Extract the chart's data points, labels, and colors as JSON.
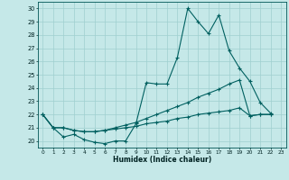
{
  "xlabel": "Humidex (Indice chaleur)",
  "background_color": "#c5e8e8",
  "grid_color": "#9fcfcf",
  "line_color": "#006060",
  "xlim": [
    -0.5,
    23.5
  ],
  "ylim": [
    19.5,
    30.5
  ],
  "xticks": [
    0,
    1,
    2,
    3,
    4,
    5,
    6,
    7,
    8,
    9,
    10,
    11,
    12,
    13,
    14,
    15,
    16,
    17,
    18,
    19,
    20,
    21,
    22,
    23
  ],
  "yticks": [
    20,
    21,
    22,
    23,
    24,
    25,
    26,
    27,
    28,
    29,
    30
  ],
  "s0": [
    22.0,
    21.0,
    20.3,
    20.5,
    20.1,
    19.9,
    19.8,
    20.0,
    20.0,
    21.3,
    24.4,
    24.3,
    24.3,
    26.3,
    30.0,
    29.0,
    28.1,
    29.5,
    26.8,
    25.5,
    24.5,
    22.9,
    22.1,
    null
  ],
  "s1": [
    22.0,
    21.0,
    21.0,
    20.8,
    20.7,
    20.7,
    20.8,
    20.9,
    21.0,
    21.1,
    21.3,
    21.4,
    21.5,
    21.7,
    21.8,
    22.0,
    22.1,
    22.2,
    22.3,
    22.5,
    21.9,
    22.0,
    22.0,
    null
  ],
  "s2": [
    22.0,
    21.0,
    21.0,
    20.8,
    20.7,
    20.7,
    20.8,
    21.0,
    21.2,
    21.4,
    21.7,
    22.0,
    22.3,
    22.6,
    22.9,
    23.3,
    23.6,
    23.9,
    24.3,
    24.6,
    21.9,
    22.0,
    22.0,
    null
  ]
}
